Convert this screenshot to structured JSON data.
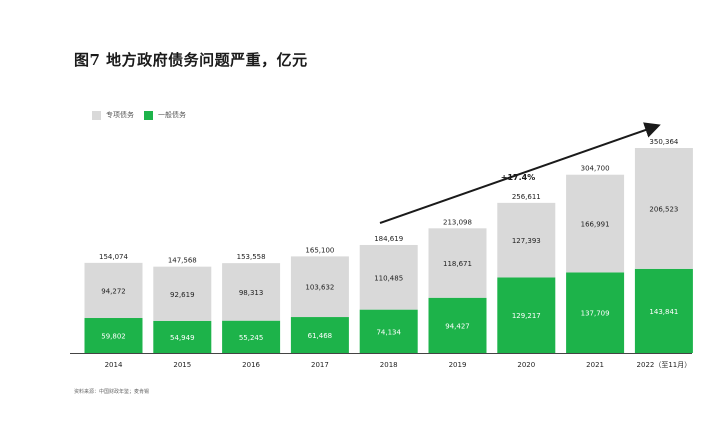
{
  "title": "图7 地方政府债务问题严重，亿元",
  "legend": [
    {
      "label": "专项债务",
      "color": "#d9d9d9"
    },
    {
      "label": "一般债务",
      "color": "#1db34a"
    }
  ],
  "source": "资料来源：中国财政年鉴；麦肯锡",
  "chart_data": {
    "type": "bar",
    "stacked": true,
    "categories": [
      "2014",
      "2015",
      "2016",
      "2017",
      "2018",
      "2019",
      "2020",
      "2021",
      "2022（至11月）"
    ],
    "series": [
      {
        "name": "一般债务",
        "color": "#1db34a",
        "values": [
          59802,
          54949,
          55245,
          61468,
          74134,
          94427,
          129217,
          137709,
          143841
        ]
      },
      {
        "name": "专项债务",
        "color": "#d9d9d9",
        "values": [
          94272,
          92619,
          98313,
          103632,
          110485,
          118671,
          127393,
          166991,
          206523
        ]
      }
    ],
    "totals": [
      154074,
      147568,
      153558,
      165100,
      184619,
      213098,
      256611,
      304700,
      350364
    ],
    "value_labels": {
      "general": [
        "59,802",
        "54,949",
        "55,245",
        "61,468",
        "74,134",
        "94,427",
        "129,217",
        "137,709",
        "143,841"
      ],
      "special": [
        "94,272",
        "92,619",
        "98,313",
        "103,632",
        "110,485",
        "118,671",
        "127,393",
        "166,991",
        "206,523"
      ],
      "totals": [
        "154,074",
        "147,568",
        "153,558",
        "165,100",
        "184,619",
        "213,098",
        "256,611",
        "304,700",
        "350,364"
      ]
    },
    "annotation": "+17.4%",
    "ylim": [
      0,
      350364
    ],
    "grid": false,
    "legend_position": "top-left"
  }
}
